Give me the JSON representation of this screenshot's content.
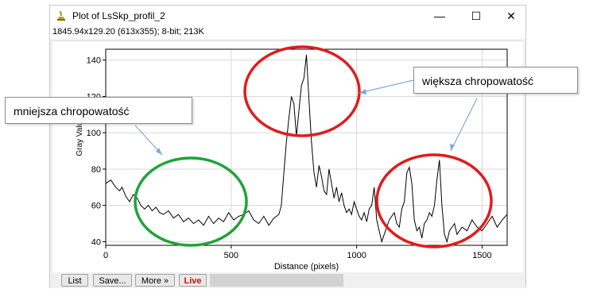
{
  "window": {
    "title": "Plot of LsSkp_profil_2",
    "info": "1845.94x129.20  (613x355); 8-bit; 213K",
    "controls": {
      "minimize": "—",
      "maximize": "☐",
      "close": "✕"
    }
  },
  "buttons": {
    "list": "List",
    "save": "Save...",
    "more": "More »",
    "live": "Live"
  },
  "annotations": {
    "left": "mniejsza chropowatość",
    "right": "większa chropowatość"
  },
  "colors": {
    "green_circle": "#1ea33a",
    "red_circle": "#e01c1c",
    "arrow": "#7fa8d8",
    "live": "#d01010"
  },
  "chart_data": {
    "type": "line",
    "xlabel": "Distance (pixels)",
    "ylabel": "Gray Value",
    "xlim": [
      0,
      1600
    ],
    "ylim": [
      38,
      146
    ],
    "xticks": [
      0,
      500,
      1000,
      1500
    ],
    "yticks": [
      40,
      60,
      80,
      100,
      120,
      140
    ],
    "grid": true,
    "series": [
      {
        "x": [
          0,
          20,
          40,
          55,
          65,
          80,
          95,
          110,
          125,
          140,
          155,
          170,
          185,
          200,
          215,
          230,
          250,
          270,
          290,
          310,
          330,
          350,
          370,
          390,
          410,
          430,
          450,
          470,
          490,
          510,
          530,
          550,
          570,
          590,
          610,
          630,
          650,
          670,
          690,
          700,
          710,
          720,
          730,
          740,
          750,
          760,
          770,
          780,
          790,
          800,
          810,
          820,
          830,
          840,
          850,
          860,
          870,
          880,
          890,
          900,
          910,
          920,
          930,
          940,
          950,
          960,
          970,
          980,
          990,
          1000,
          1010,
          1020,
          1030,
          1040,
          1050,
          1060,
          1070,
          1080,
          1090,
          1100,
          1110,
          1120,
          1130,
          1140,
          1150,
          1160,
          1170,
          1180,
          1190,
          1200,
          1210,
          1220,
          1230,
          1240,
          1250,
          1260,
          1270,
          1280,
          1290,
          1300,
          1310,
          1320,
          1330,
          1340,
          1350,
          1360,
          1370,
          1380,
          1390,
          1400,
          1420,
          1440,
          1460,
          1480,
          1500,
          1520,
          1540,
          1560,
          1580,
          1600
        ],
        "y": [
          72,
          74,
          70,
          68,
          70,
          65,
          62,
          66,
          64,
          60,
          58,
          60,
          57,
          59,
          56,
          55,
          57,
          53,
          55,
          51,
          53,
          50,
          52,
          49,
          54,
          50,
          53,
          51,
          56,
          52,
          54,
          55,
          57,
          52,
          50,
          54,
          49,
          53,
          55,
          60,
          78,
          95,
          108,
          120,
          116,
          98,
          112,
          126,
          130,
          143,
          118,
          95,
          78,
          70,
          82,
          76,
          68,
          66,
          80,
          72,
          64,
          70,
          62,
          67,
          60,
          56,
          58,
          55,
          62,
          58,
          54,
          52,
          56,
          51,
          58,
          60,
          70,
          52,
          46,
          40,
          44,
          48,
          52,
          54,
          56,
          50,
          48,
          58,
          62,
          78,
          81,
          72,
          52,
          46,
          48,
          42,
          50,
          52,
          56,
          54,
          60,
          74,
          85,
          60,
          44,
          40,
          46,
          48,
          50,
          44,
          48,
          46,
          52,
          48,
          46,
          50,
          54,
          48,
          52,
          55
        ]
      }
    ]
  }
}
